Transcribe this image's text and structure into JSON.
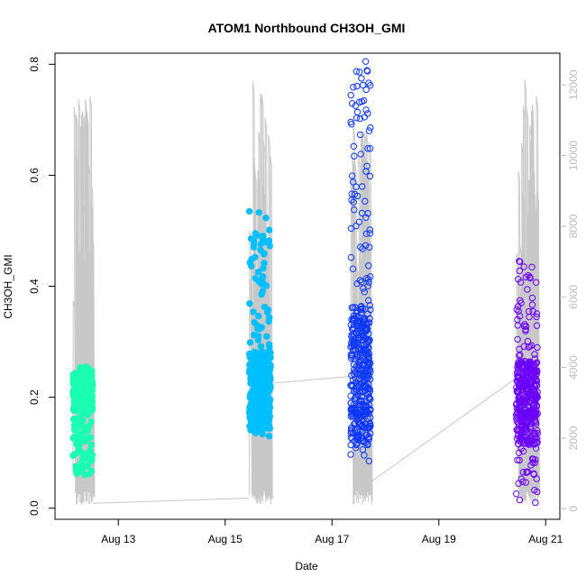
{
  "chart_data": {
    "type": "scatter",
    "title": "ATOM1 Northbound CH3OH_GMI",
    "xlabel": "Date",
    "ylabel": "CH3OH_GMI",
    "x_ticks": [
      "Aug 13",
      "Aug 15",
      "Aug 17",
      "Aug 19",
      "Aug 21"
    ],
    "x_range_days": [
      12.0,
      21.08
    ],
    "ylim": [
      -0.02,
      0.82
    ],
    "y_ticks": [
      0.0,
      0.2,
      0.4,
      0.6,
      0.8
    ],
    "y_tick_labels": [
      "0.0",
      "0.2",
      "0.4",
      "0.6",
      "0.8"
    ],
    "y2lim": [
      -300,
      12900
    ],
    "y2_ticks": [
      0,
      2000,
      4000,
      6000,
      8000,
      10000,
      12000
    ],
    "y2_tick_labels": [
      "0",
      "2000",
      "4000",
      "6000",
      "8000",
      "10000",
      "12000"
    ],
    "altitude_line_color": "#c8c8c8",
    "flights": [
      {
        "color": "#1affb2",
        "filled": true,
        "start": 12.15,
        "end": 12.52,
        "ymin": 0.06,
        "ymax": 0.255,
        "center": 0.21,
        "alt_start": 1000,
        "alt_max": 11700
      },
      {
        "color": "#00bfff",
        "filled": true,
        "start": 15.45,
        "end": 15.85,
        "ymin": 0.13,
        "ymax": 0.535,
        "center": 0.21,
        "alt_start": 400,
        "alt_max": 12500
      },
      {
        "color": "#0d37ff",
        "filled": false,
        "start": 17.35,
        "end": 17.72,
        "ymin": 0.085,
        "ymax": 0.805,
        "center": 0.24,
        "alt_start": 1800,
        "alt_max": 11300
      },
      {
        "color": "#6a00ff",
        "filled": false,
        "start": 20.45,
        "end": 20.85,
        "ymin": 0.01,
        "ymax": 0.445,
        "center": 0.19,
        "alt_start": 2300,
        "alt_max": 12200
      }
    ],
    "transit_lines": [
      {
        "x": [
          12.52,
          15.45
        ],
        "alt": [
          150,
          300
        ]
      },
      {
        "x": [
          15.85,
          17.35
        ],
        "alt": [
          3550,
          3750
        ]
      },
      {
        "x": [
          17.72,
          20.45
        ],
        "alt": [
          750,
          3700
        ]
      }
    ]
  }
}
